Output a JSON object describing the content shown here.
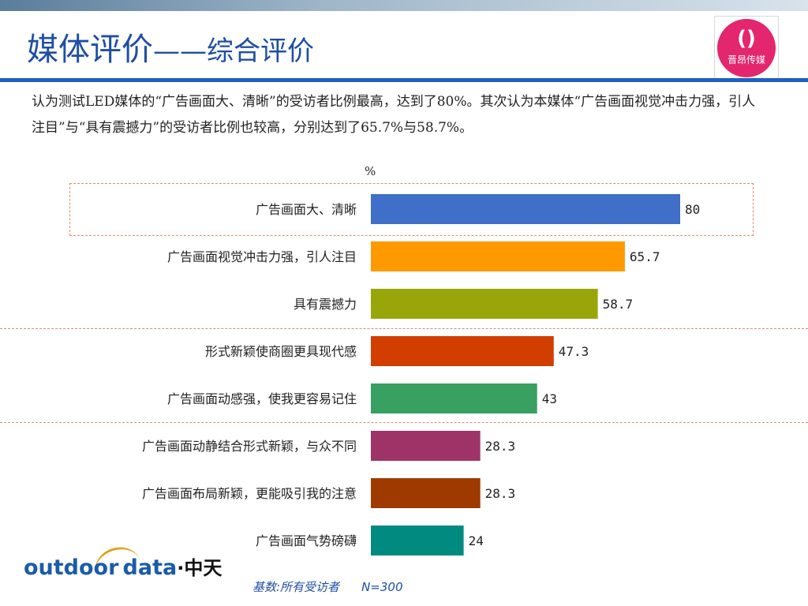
{
  "header": {
    "title_main": "媒体评价",
    "title_dash": "——",
    "title_sub": "综合评价",
    "logo_mark": "()",
    "logo_name": "晋昂传媒"
  },
  "summary_text": "认为测试LED媒体的“广告画面大、清晰”的受访者比例最高，达到了80%。其次认为本媒体“广告画面视觉冲击力强，引人注目”与“具有震撼力”的受访者比例也较高，分别达到了65.7%与58.7%。",
  "chart_data": {
    "type": "bar",
    "orientation": "horizontal",
    "unit": "%",
    "title": "",
    "xlabel": "",
    "ylabel": "",
    "xlim": [
      0,
      100
    ],
    "grid": false,
    "categories": [
      "广告画面大、清晰",
      "广告画面视觉冲击力强，引人注目",
      "具有震撼力",
      "形式新颖使商圈更具现代感",
      "广告画面动感强，使我更容易记住",
      "广告画面动静结合形式新颖，与众不同",
      "广告画面布局新颖，更能吸引我的注意",
      "广告画面气势磅礴"
    ],
    "values": [
      80,
      65.7,
      58.7,
      47.3,
      43,
      28.3,
      28.3,
      24
    ],
    "value_labels": [
      "80",
      "65.7",
      "58.7",
      "47.3",
      "43",
      "28.3",
      "28.3",
      "24"
    ],
    "colors": [
      "#3f6fc8",
      "#ff9900",
      "#99a60a",
      "#d23d00",
      "#38a060",
      "#9e3368",
      "#9e3a00",
      "#008a80"
    ]
  },
  "footer": {
    "logo_outdoor": "outdoor",
    "logo_data": "data",
    "logo_cn": "·中天",
    "base_label": "基数:所有受访者",
    "base_n": "N=300"
  }
}
